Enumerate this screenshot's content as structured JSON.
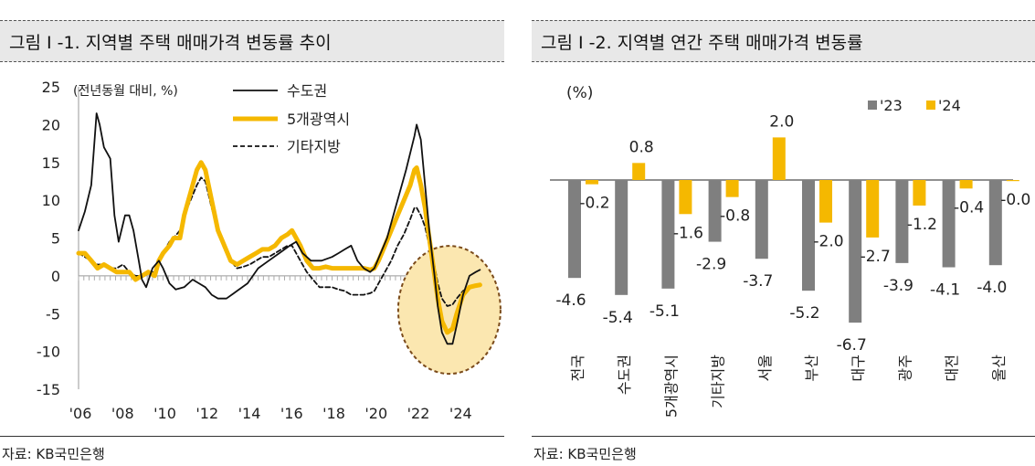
{
  "left": {
    "title": "그림 I -1. 지역별 주택 매매가격 변동률 추이",
    "source": "자료: KB국민은행"
  },
  "right": {
    "title": "그림 I -2. 지역별 연간 주택 매매가격 변동률",
    "source": "자료: KB국민은행"
  },
  "chart_data": [
    {
      "type": "line",
      "title": "지역별 주택 매매가격 변동률 추이",
      "ylabel": "(전년동월 대비, %)",
      "xlabel": "",
      "ylim": [
        -15,
        25
      ],
      "xlim": [
        2006,
        2025.5
      ],
      "y_ticks": [
        "25",
        "20",
        "15",
        "10",
        "5",
        "0",
        "-5",
        "-10",
        "-15"
      ],
      "x_ticks": [
        "'06",
        "'08",
        "'10",
        "'12",
        "'14",
        "'16",
        "'18",
        "'20",
        "'22",
        "'24"
      ],
      "legend_position": "top",
      "highlight": "dashed circle around 2023–2024 trough",
      "series": [
        {
          "name": "수도권",
          "color": "#111111",
          "style": "solid",
          "points": [
            [
              2006.0,
              6.0
            ],
            [
              2006.3,
              8.5
            ],
            [
              2006.6,
              12
            ],
            [
              2006.85,
              21.5
            ],
            [
              2007.0,
              20
            ],
            [
              2007.2,
              17
            ],
            [
              2007.5,
              15.5
            ],
            [
              2007.7,
              8
            ],
            [
              2007.9,
              4.5
            ],
            [
              2008.2,
              8
            ],
            [
              2008.4,
              8
            ],
            [
              2008.6,
              6
            ],
            [
              2008.85,
              2
            ],
            [
              2009.0,
              -0.5
            ],
            [
              2009.2,
              -1.5
            ],
            [
              2009.5,
              1
            ],
            [
              2009.8,
              2
            ],
            [
              2010.0,
              1
            ],
            [
              2010.3,
              -1
            ],
            [
              2010.6,
              -1.8
            ],
            [
              2011.0,
              -1.5
            ],
            [
              2011.4,
              -0.5
            ],
            [
              2011.7,
              -1
            ],
            [
              2012.0,
              -1.5
            ],
            [
              2012.3,
              -2.5
            ],
            [
              2012.6,
              -3
            ],
            [
              2013.0,
              -3
            ],
            [
              2013.5,
              -2
            ],
            [
              2014.0,
              -1
            ],
            [
              2014.5,
              1
            ],
            [
              2015.0,
              2
            ],
            [
              2015.5,
              3
            ],
            [
              2016.0,
              4
            ],
            [
              2016.3,
              4.5
            ],
            [
              2016.6,
              3
            ],
            [
              2017.0,
              2
            ],
            [
              2017.5,
              2
            ],
            [
              2018.0,
              2.5
            ],
            [
              2018.3,
              3
            ],
            [
              2018.6,
              3.5
            ],
            [
              2018.9,
              4
            ],
            [
              2019.2,
              2
            ],
            [
              2019.5,
              1
            ],
            [
              2019.8,
              0.5
            ],
            [
              2020.0,
              1
            ],
            [
              2020.3,
              3
            ],
            [
              2020.6,
              5
            ],
            [
              2021.0,
              9
            ],
            [
              2021.5,
              14
            ],
            [
              2021.9,
              18.5
            ],
            [
              2022.0,
              20
            ],
            [
              2022.2,
              18
            ],
            [
              2022.4,
              12
            ],
            [
              2022.6,
              6
            ],
            [
              2022.85,
              0
            ],
            [
              2023.0,
              -4
            ],
            [
              2023.2,
              -7.5
            ],
            [
              2023.45,
              -9
            ],
            [
              2023.7,
              -9
            ],
            [
              2023.9,
              -6.5
            ],
            [
              2024.2,
              -2.5
            ],
            [
              2024.5,
              0
            ],
            [
              2024.8,
              0.5
            ],
            [
              2025.0,
              0.8
            ]
          ]
        },
        {
          "name": "5개광역시",
          "color": "#f5b800",
          "style": "solid",
          "points": [
            [
              2006.0,
              3
            ],
            [
              2006.3,
              3
            ],
            [
              2006.6,
              2
            ],
            [
              2006.9,
              1
            ],
            [
              2007.2,
              1.5
            ],
            [
              2007.5,
              1
            ],
            [
              2007.8,
              0.5
            ],
            [
              2008.1,
              0.5
            ],
            [
              2008.4,
              0.5
            ],
            [
              2008.7,
              -0.5
            ],
            [
              2009.0,
              0
            ],
            [
              2009.3,
              0.5
            ],
            [
              2009.6,
              0
            ],
            [
              2009.8,
              2
            ],
            [
              2010.0,
              3
            ],
            [
              2010.3,
              4
            ],
            [
              2010.5,
              5
            ],
            [
              2010.8,
              5
            ],
            [
              2011.0,
              8
            ],
            [
              2011.3,
              11
            ],
            [
              2011.6,
              14
            ],
            [
              2011.8,
              15
            ],
            [
              2012.0,
              14
            ],
            [
              2012.3,
              10
            ],
            [
              2012.6,
              6
            ],
            [
              2012.9,
              4
            ],
            [
              2013.2,
              2
            ],
            [
              2013.5,
              1.5
            ],
            [
              2013.8,
              2
            ],
            [
              2014.1,
              2.5
            ],
            [
              2014.4,
              3
            ],
            [
              2014.7,
              3.5
            ],
            [
              2015.0,
              3.5
            ],
            [
              2015.3,
              4
            ],
            [
              2015.6,
              5
            ],
            [
              2015.9,
              5.5
            ],
            [
              2016.1,
              6
            ],
            [
              2016.3,
              5
            ],
            [
              2016.5,
              4
            ],
            [
              2016.8,
              2
            ],
            [
              2017.1,
              1
            ],
            [
              2017.4,
              1
            ],
            [
              2017.7,
              1.2
            ],
            [
              2018.0,
              1
            ],
            [
              2018.3,
              1
            ],
            [
              2018.6,
              1
            ],
            [
              2018.9,
              1
            ],
            [
              2019.2,
              1
            ],
            [
              2019.5,
              1
            ],
            [
              2019.8,
              0.8
            ],
            [
              2020.0,
              1
            ],
            [
              2020.2,
              2
            ],
            [
              2020.5,
              4
            ],
            [
              2020.8,
              6
            ],
            [
              2021.1,
              8
            ],
            [
              2021.4,
              10
            ],
            [
              2021.7,
              12
            ],
            [
              2021.9,
              14
            ],
            [
              2022.0,
              14.3
            ],
            [
              2022.2,
              12
            ],
            [
              2022.4,
              9
            ],
            [
              2022.6,
              5
            ],
            [
              2022.8,
              1
            ],
            [
              2023.0,
              -3
            ],
            [
              2023.2,
              -6
            ],
            [
              2023.45,
              -7.5
            ],
            [
              2023.7,
              -7
            ],
            [
              2023.9,
              -5
            ],
            [
              2024.2,
              -2.5
            ],
            [
              2024.5,
              -1.5
            ],
            [
              2024.8,
              -1.3
            ],
            [
              2025.0,
              -1.2
            ]
          ]
        },
        {
          "name": "기타지방",
          "color": "#111111",
          "style": "dashed",
          "points": [
            [
              2006.0,
              3
            ],
            [
              2006.3,
              2.5
            ],
            [
              2006.6,
              2
            ],
            [
              2006.9,
              1.5
            ],
            [
              2007.2,
              1.5
            ],
            [
              2007.5,
              1
            ],
            [
              2007.8,
              1
            ],
            [
              2008.1,
              1.5
            ],
            [
              2008.4,
              0.5
            ],
            [
              2008.7,
              0
            ],
            [
              2009.0,
              0
            ],
            [
              2009.3,
              0.5
            ],
            [
              2009.6,
              0.5
            ],
            [
              2009.8,
              2
            ],
            [
              2010.0,
              3
            ],
            [
              2010.3,
              4.5
            ],
            [
              2010.5,
              5
            ],
            [
              2010.8,
              6
            ],
            [
              2011.0,
              8
            ],
            [
              2011.3,
              10
            ],
            [
              2011.6,
              12
            ],
            [
              2011.8,
              13
            ],
            [
              2012.0,
              12.5
            ],
            [
              2012.3,
              9
            ],
            [
              2012.6,
              6
            ],
            [
              2012.9,
              3.5
            ],
            [
              2013.2,
              2
            ],
            [
              2013.5,
              1
            ],
            [
              2013.8,
              1.2
            ],
            [
              2014.1,
              1.5
            ],
            [
              2014.4,
              2
            ],
            [
              2014.7,
              2.5
            ],
            [
              2015.0,
              2.5
            ],
            [
              2015.3,
              3
            ],
            [
              2015.6,
              3.5
            ],
            [
              2015.9,
              4
            ],
            [
              2016.1,
              4
            ],
            [
              2016.3,
              3
            ],
            [
              2016.5,
              2
            ],
            [
              2016.8,
              0.5
            ],
            [
              2017.1,
              -0.5
            ],
            [
              2017.4,
              -1.5
            ],
            [
              2017.7,
              -1.5
            ],
            [
              2018.0,
              -1.5
            ],
            [
              2018.3,
              -1.8
            ],
            [
              2018.6,
              -2
            ],
            [
              2018.9,
              -2.5
            ],
            [
              2019.2,
              -2.5
            ],
            [
              2019.5,
              -2.5
            ],
            [
              2019.8,
              -2.3
            ],
            [
              2020.0,
              -2
            ],
            [
              2020.2,
              -1
            ],
            [
              2020.5,
              0.5
            ],
            [
              2020.8,
              2
            ],
            [
              2021.1,
              4
            ],
            [
              2021.4,
              5.5
            ],
            [
              2021.7,
              7.5
            ],
            [
              2021.9,
              9
            ],
            [
              2022.0,
              9
            ],
            [
              2022.2,
              8
            ],
            [
              2022.4,
              6.5
            ],
            [
              2022.6,
              4
            ],
            [
              2022.8,
              2
            ],
            [
              2023.0,
              -1
            ],
            [
              2023.2,
              -3
            ],
            [
              2023.45,
              -4
            ],
            [
              2023.7,
              -3.8
            ],
            [
              2023.9,
              -3
            ],
            [
              2024.2,
              -2
            ],
            [
              2024.5,
              -1.5
            ],
            [
              2024.8,
              -1.3
            ],
            [
              2025.0,
              -1.2
            ]
          ]
        }
      ]
    },
    {
      "type": "bar",
      "title": "지역별 연간 주택 매매가격 변동률",
      "ylabel": "(%)",
      "ylim": [
        -7.5,
        2.6
      ],
      "legend_position": "top-right",
      "categories": [
        "전국",
        "수도권",
        "5개광역시",
        "기타지방",
        "서울",
        "부산",
        "대구",
        "광주",
        "대전",
        "울산"
      ],
      "series": [
        {
          "name": "'23",
          "color": "#7f7f7f",
          "values": [
            -4.6,
            -5.4,
            -5.1,
            -2.9,
            -3.7,
            -5.2,
            -6.7,
            -3.9,
            -4.1,
            -4.0
          ],
          "labels": [
            "-4.6",
            "-5.4",
            "-5.1",
            "-2.9",
            "-3.7",
            "-5.2",
            "-6.7",
            "-3.9",
            "-4.1",
            "-4.0"
          ]
        },
        {
          "name": "'24",
          "color": "#f5b800",
          "values": [
            -0.2,
            0.8,
            -1.6,
            -0.8,
            2.0,
            -2.0,
            -2.7,
            -1.2,
            -0.4,
            -0.04
          ],
          "labels": [
            "-0.2",
            "0.8",
            "-1.6",
            "-0.8",
            "2.0",
            "-2.0",
            "-2.7",
            "-1.2",
            "-0.4",
            "-0.0"
          ]
        }
      ]
    }
  ]
}
